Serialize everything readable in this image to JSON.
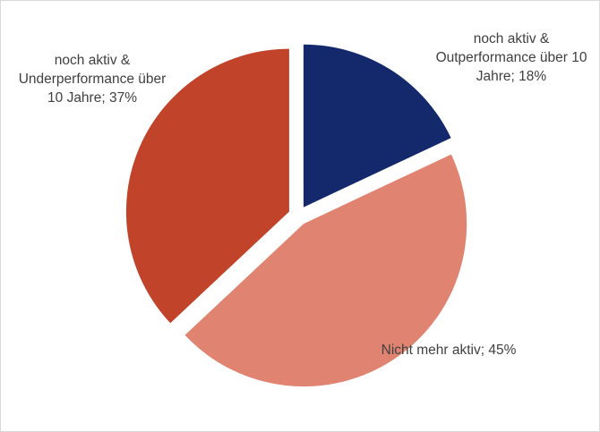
{
  "chart_data": {
    "type": "pie",
    "values": [
      18,
      45,
      37
    ],
    "value_labels": [
      "noch aktiv & Outperformance über 10 Jahre; 18%",
      "Nicht mehr aktiv; 45%",
      "noch aktiv & Underperformance über 10 Jahre; 37%"
    ],
    "colors": [
      "#14296b",
      "#e08471",
      "#c0432a"
    ]
  }
}
